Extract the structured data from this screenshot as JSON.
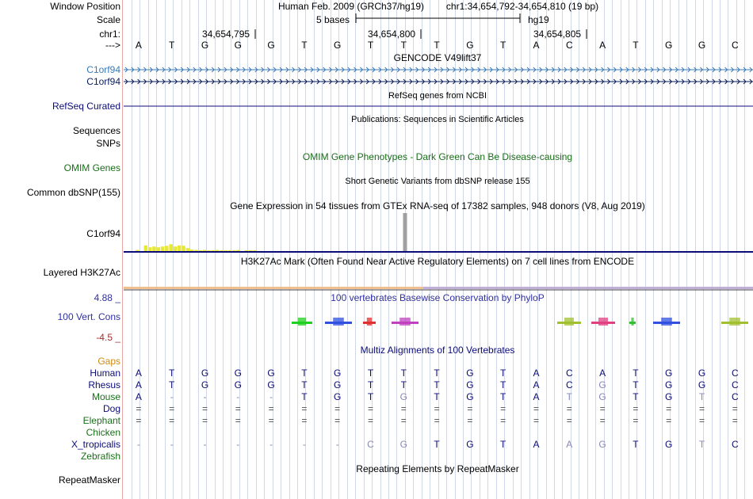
{
  "labels": {
    "window_position": "Window Position",
    "scale": "Scale",
    "chr": "chr1:",
    "arrow": "--->",
    "gene1": "C1orf94",
    "gene2": "C1orf94",
    "refseq": "RefSeq Curated",
    "sequences": "Sequences",
    "snps": "SNPs",
    "omim": "OMIM Genes",
    "dbsnp": "Common dbSNP(155)",
    "gtex": "C1orf94",
    "h3k27ac": "Layered H3K27Ac",
    "cons_max": "4.88 _",
    "cons_name": "100 Vert. Cons",
    "cons_min": "-4.5 _",
    "gaps": "Gaps",
    "repeat": "RepeatMasker"
  },
  "header": {
    "genome": "Human Feb. 2009 (GRCh37/hg19)",
    "position": "chr1:34,654,792-34,654,810 (19 bp)",
    "scale_text": "5 bases",
    "assembly": "hg19",
    "ticks": [
      "34,654,795",
      "34,654,800",
      "34,654,805"
    ]
  },
  "sequence": [
    "A",
    "T",
    "G",
    "G",
    "G",
    "T",
    "G",
    "T",
    "T",
    "T",
    "G",
    "T",
    "A",
    "C",
    "A",
    "T",
    "G",
    "G",
    "C"
  ],
  "tracks": {
    "gencode_title": "GENCODE V49lift37",
    "refseq_title": "RefSeq genes from NCBI",
    "pubs_title": "Publications: Sequences in Scientific Articles",
    "omim_title": "OMIM Gene Phenotypes - Dark Green Can Be Disease-causing",
    "dbsnp_title": "Short Genetic Variants from dbSNP release 155",
    "gtex_title": "Gene Expression in 54 tissues from GTEx RNA-seq of 17382 samples, 948 donors (V8, Aug 2019)",
    "h3k27_title": "H3K27Ac Mark (Often Found Near Active Regulatory Elements) on 7 cell lines from ENCODE",
    "phylop_title": "100 vertebrates Basewise Conservation by PhyloP",
    "multiz_title": "Multiz Alignments of 100 Vertebrates",
    "repeat_title": "Repeating Elements by RepeatMasker"
  },
  "gtex_values": [
    0.03,
    0,
    0.15,
    0.1,
    0.12,
    0.1,
    0.12,
    0.14,
    0.18,
    0.12,
    0.15,
    0.14,
    0.08,
    0.04,
    0.03,
    0.02,
    0.03,
    0.02,
    0.02,
    0.03,
    0.02,
    0.01,
    0.02,
    0.02,
    0.03,
    1.0,
    0.01,
    0.01,
    0.01
  ],
  "colors": {
    "gencode_blue": "#3a7ab8",
    "gencode_dark": "#0a1f5c",
    "omim_green": "#1a6e1a",
    "refseq": "#0c0c78",
    "cons_blue": "#3030a0",
    "cons_min": "#a03030",
    "gaps_orange": "#d08a10",
    "species_blue": "#0c0c78",
    "species_green": "#1a6e1a",
    "gtex_yellow": "#e8e838",
    "gtex_grey": "#a0a0a0"
  },
  "species": [
    {
      "name": "Human",
      "color": "blue",
      "seq": [
        "A",
        "T",
        "G",
        "G",
        "G",
        "T",
        "G",
        "T",
        "T",
        "T",
        "G",
        "T",
        "A",
        "C",
        "A",
        "T",
        "G",
        "G",
        "C"
      ],
      "faint": []
    },
    {
      "name": "Rhesus",
      "color": "blue",
      "seq": [
        "A",
        "T",
        "G",
        "G",
        "G",
        "T",
        "G",
        "T",
        "T",
        "T",
        "G",
        "T",
        "A",
        "C",
        "G",
        "T",
        "G",
        "G",
        "C"
      ],
      "faint": [
        14
      ]
    },
    {
      "name": "Mouse",
      "color": "green",
      "seq": [
        "A",
        "-",
        "-",
        "-",
        "-",
        "T",
        "G",
        "T",
        "G",
        "T",
        "G",
        "T",
        "A",
        "T",
        "G",
        "T",
        "G",
        "T",
        "C"
      ],
      "faint": [
        1,
        2,
        3,
        4,
        8,
        13,
        14,
        17
      ]
    },
    {
      "name": "Dog",
      "color": "blue",
      "seq": [
        "=",
        "=",
        "=",
        "=",
        "=",
        "=",
        "=",
        "=",
        "=",
        "=",
        "=",
        "=",
        "=",
        "=",
        "=",
        "=",
        "=",
        "=",
        "="
      ],
      "faint": []
    },
    {
      "name": "Elephant",
      "color": "green",
      "seq": [
        "=",
        "=",
        "=",
        "=",
        "=",
        "=",
        "=",
        "=",
        "=",
        "=",
        "=",
        "=",
        "=",
        "=",
        "=",
        "=",
        "=",
        "=",
        "="
      ],
      "faint": []
    },
    {
      "name": "Chicken",
      "color": "green",
      "seq": [
        "",
        "",
        "",
        "",
        "",
        "",
        "",
        "",
        "",
        "",
        "",
        "",
        "",
        "",
        "",
        "",
        "",
        "",
        ""
      ],
      "faint": []
    },
    {
      "name": "X_tropicalis",
      "color": "blue",
      "seq": [
        "-",
        "-",
        "-",
        "-",
        "-",
        "-",
        "-",
        "C",
        "G",
        "T",
        "G",
        "T",
        "A",
        "A",
        "G",
        "T",
        "G",
        "T",
        "C"
      ],
      "faint": [
        0,
        1,
        2,
        3,
        4,
        5,
        6,
        7,
        8,
        13,
        14,
        17
      ]
    },
    {
      "name": "Zebrafish",
      "color": "green",
      "seq": [
        "",
        "",
        "",
        "",
        "",
        "",
        "",
        "",
        "",
        "",
        "",
        "",
        "",
        "",
        "",
        "",
        "",
        "",
        ""
      ],
      "faint": []
    }
  ]
}
